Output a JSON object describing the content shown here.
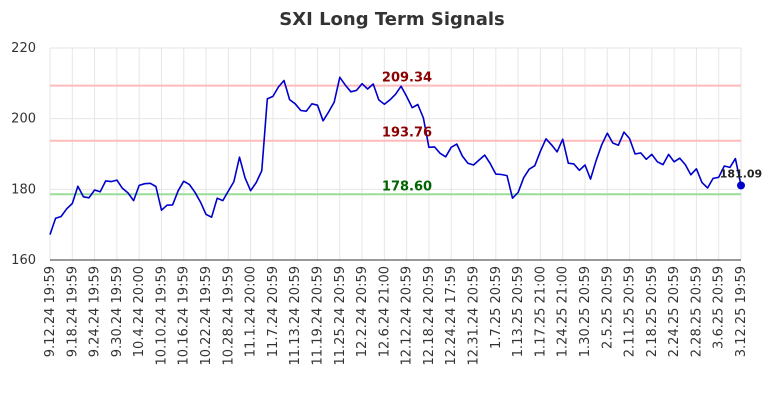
{
  "chart_data": {
    "type": "line",
    "title": "SXI Long Term Signals",
    "ylim": [
      160,
      220
    ],
    "y_ticks": [
      160,
      180,
      200,
      220
    ],
    "grid": true,
    "x_tick_labels": [
      "9.12.24 19:59",
      "9.18.24 19:59",
      "9.24.24 19:59",
      "9.30.24 19:59",
      "10.4.24 20:00",
      "10.10.24 19:59",
      "10.16.24 19:59",
      "10.22.24 19:59",
      "10.28.24 19:59",
      "11.1.24 20:00",
      "11.7.24 20:59",
      "11.13.24 20:59",
      "11.19.24 20:59",
      "11.25.24 20:59",
      "12.2.24 20:59",
      "12.6.24 21:00",
      "12.12.24 20:59",
      "12.18.24 20:59",
      "12.24.24 17:59",
      "12.31.24 20:59",
      "1.7.25 20:59",
      "1.13.25 20:59",
      "1.17.25 21:00",
      "1.24.25 21:00",
      "1.30.25 20:59",
      "2.5.25 20:59",
      "2.11.25 20:59",
      "2.18.25 20:59",
      "2.24.25 20:59",
      "2.28.25 20:59",
      "3.6.25 20:59",
      "3.12.25 19:59"
    ],
    "reference_lines": [
      {
        "value": 209.34,
        "label": "209.34",
        "color": "#ffbbbb",
        "label_color": "#8b0000"
      },
      {
        "value": 193.76,
        "label": "193.76",
        "color": "#ffbbbb",
        "label_color": "#8b0000"
      },
      {
        "value": 178.6,
        "label": "178.60",
        "color": "#99dd99",
        "label_color": "#006400"
      }
    ],
    "series": [
      {
        "color": "#0000cc",
        "values": [
          167.2,
          171.8,
          172.3,
          174.5,
          176.0,
          180.9,
          177.9,
          177.6,
          179.8,
          179.3,
          182.4,
          182.2,
          182.6,
          180.3,
          179.0,
          176.8,
          181.1,
          181.6,
          181.7,
          180.8,
          174.1,
          175.5,
          175.6,
          179.6,
          182.3,
          181.4,
          179.2,
          176.4,
          172.9,
          172.1,
          177.5,
          176.8,
          179.5,
          182.2,
          189.1,
          183.3,
          179.6,
          181.9,
          185.3,
          205.6,
          206.3,
          209.0,
          210.8,
          205.4,
          204.2,
          202.3,
          202.1,
          204.2,
          203.8,
          199.4,
          201.9,
          204.7,
          211.7,
          209.5,
          207.6,
          208.0,
          209.9,
          208.4,
          209.8,
          205.3,
          204.1,
          205.3,
          206.9,
          209.2,
          206.3,
          203.1,
          204.0,
          200.2,
          191.9,
          192.0,
          190.2,
          189.2,
          191.9,
          192.8,
          189.4,
          187.4,
          186.9,
          188.3,
          189.7,
          187.3,
          184.3,
          184.2,
          183.9,
          177.5,
          179.1,
          183.3,
          185.7,
          186.7,
          190.8,
          194.3,
          192.6,
          190.6,
          194.2,
          187.4,
          187.2,
          185.4,
          186.9,
          182.9,
          188.1,
          192.6,
          195.9,
          193.1,
          192.5,
          196.2,
          194.4,
          190.0,
          190.3,
          188.5,
          189.9,
          187.8,
          187.0,
          189.9,
          187.8,
          188.8,
          187.0,
          184.1,
          185.8,
          181.9,
          180.4,
          183.1,
          183.4,
          186.6,
          186.2,
          188.7,
          181.09
        ]
      }
    ],
    "last_value": {
      "value": 181.09,
      "label": "181.09"
    }
  }
}
